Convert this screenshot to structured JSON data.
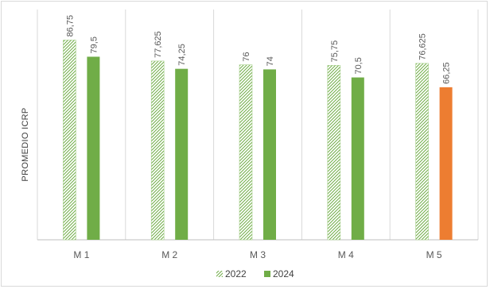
{
  "chart_data": {
    "type": "bar",
    "categories": [
      "M 1",
      "M 2",
      "M 3",
      "M 4",
      "M 5"
    ],
    "series": [
      {
        "name": "2022",
        "values": [
          86.75,
          77.625,
          76,
          75.75,
          76.625
        ],
        "labels": [
          "86,75",
          "77,625",
          "76",
          "75,75",
          "76,625"
        ],
        "color": "#70ad47",
        "pattern": "diagonal-hatch"
      },
      {
        "name": "2024",
        "values": [
          79.5,
          74.25,
          74,
          70.5,
          66.25
        ],
        "labels": [
          "79,5",
          "74,25",
          "74",
          "70,5",
          "66,25"
        ],
        "color": "#70ad47",
        "highlight": {
          "index": 4,
          "color": "#ed7d31"
        }
      }
    ],
    "title": "",
    "xlabel": "",
    "ylabel": "PROMEDIO ICRP",
    "ylim": [
      0,
      100
    ],
    "grid": "vertical-category-separators",
    "legend": "bottom"
  }
}
